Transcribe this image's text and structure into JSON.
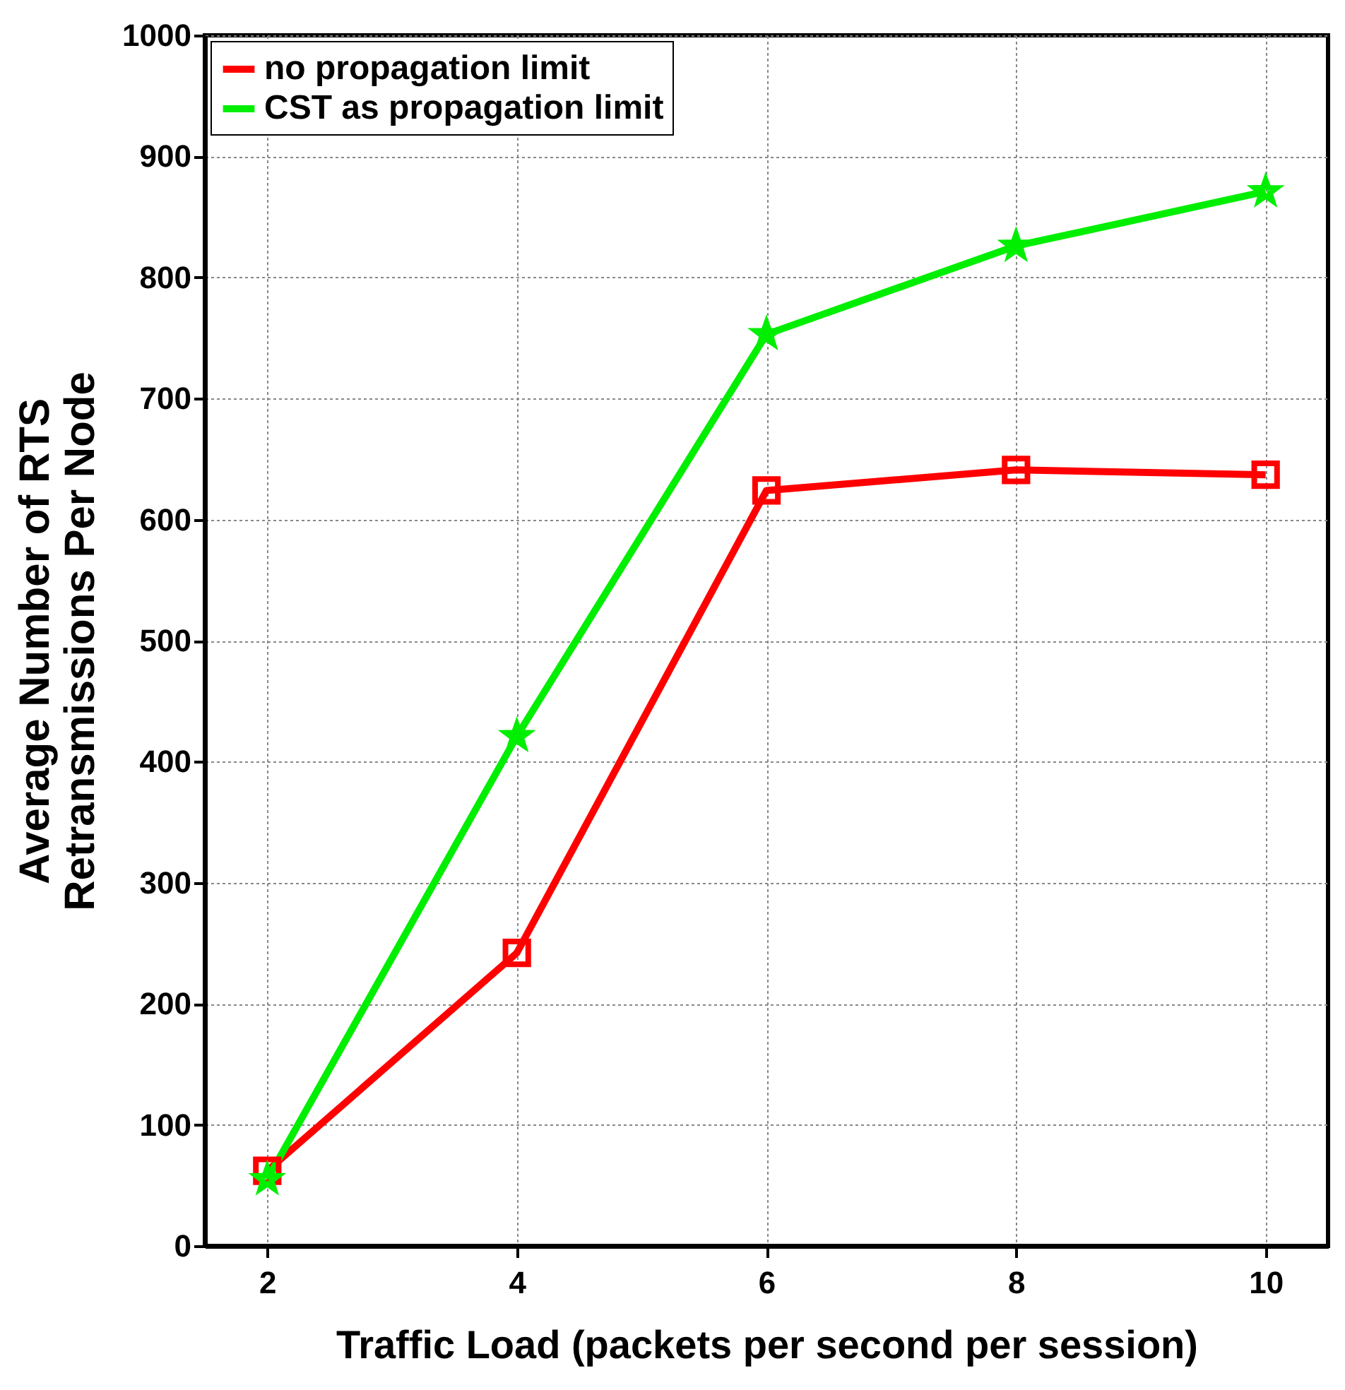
{
  "chart_data": {
    "type": "line",
    "xlabel": "Traffic Load (packets per second per session)",
    "ylabel": "Average Number of RTS\nRetransmissions Per Node",
    "x": [
      2,
      4,
      6,
      8,
      10
    ],
    "series": [
      {
        "name": "no propagation limit",
        "color": "#ff0000",
        "marker": "square",
        "values": [
          62,
          242,
          624,
          641,
          637
        ]
      },
      {
        "name": "CST as propagation limit",
        "color": "#00ee00",
        "marker": "star",
        "values": [
          55,
          421,
          753,
          826,
          871
        ]
      }
    ],
    "xlim": [
      1.5,
      10.5
    ],
    "xticks": [
      2,
      4,
      6,
      8,
      10
    ],
    "ylim": [
      0,
      1000
    ],
    "yticks": [
      0,
      100,
      200,
      300,
      400,
      500,
      600,
      700,
      800,
      900,
      1000
    ],
    "grid": true,
    "legend": "top left",
    "line_style": "solid"
  }
}
